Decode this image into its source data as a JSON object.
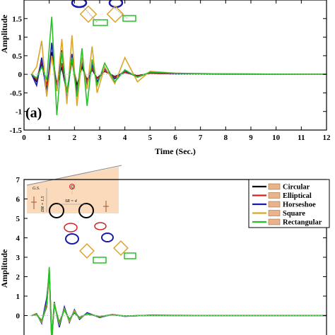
{
  "chart_data": [
    {
      "type": "line",
      "panel_label": "(a)",
      "xlabel": "Time (Sec.)",
      "ylabel": "Amplitude",
      "xlim": [
        0,
        12
      ],
      "ylim": [
        -1.5,
        2.0
      ],
      "x_ticks": [
        "0",
        "1",
        "2",
        "3",
        "4",
        "5",
        "6",
        "7",
        "8",
        "9",
        "10",
        "11",
        "12"
      ],
      "y_ticks": [
        "-1.5",
        "-1",
        "-0.5",
        "0",
        "0.5",
        "1",
        "1.5"
      ],
      "grid": false,
      "colors": {
        "Circular": "#000000",
        "Elliptical": "#d62020",
        "Horseshoe": "#1a1aa8",
        "Square": "#dba52a",
        "Rectangular": "#28c028"
      },
      "series": [
        {
          "name": "Circular",
          "x": [
            0.3,
            0.5,
            0.7,
            0.9,
            1.1,
            1.3,
            1.5,
            1.7,
            1.9,
            2.1,
            2.3,
            2.5,
            2.7,
            2.9,
            3.2,
            3.6,
            4.0,
            4.5,
            5.0,
            6.0,
            8.0,
            12.0
          ],
          "values": [
            0,
            -0.2,
            0.3,
            -0.4,
            0.6,
            -0.3,
            0.2,
            -0.5,
            0.4,
            -0.3,
            0.2,
            -0.15,
            0.12,
            -0.1,
            0.08,
            -0.06,
            0.05,
            -0.04,
            0.03,
            0.01,
            0.005,
            0
          ]
        },
        {
          "name": "Elliptical",
          "x": [
            0.3,
            0.5,
            0.7,
            0.9,
            1.1,
            1.3,
            1.5,
            1.7,
            1.9,
            2.1,
            2.3,
            2.5,
            2.7,
            2.9,
            3.2,
            3.6,
            4.0,
            4.5,
            5.0,
            6.0,
            8.0,
            12.0
          ],
          "values": [
            0,
            -0.15,
            0.35,
            -0.3,
            0.5,
            -0.25,
            0.3,
            -0.45,
            0.35,
            -0.4,
            0.3,
            -0.2,
            0.15,
            -0.12,
            0.1,
            -0.08,
            0.06,
            -0.05,
            0.03,
            0.015,
            0.005,
            0
          ]
        },
        {
          "name": "Horseshoe",
          "x": [
            0.3,
            0.5,
            0.7,
            0.9,
            1.1,
            1.3,
            1.5,
            1.7,
            1.9,
            2.1,
            2.3,
            2.5,
            2.7,
            2.9,
            3.2,
            3.6,
            4.0,
            4.5,
            5.0,
            6.0,
            8.0,
            12.0
          ],
          "values": [
            0,
            -0.3,
            0.45,
            -0.55,
            0.85,
            -0.45,
            0.65,
            -0.7,
            0.55,
            -0.5,
            0.35,
            -0.3,
            0.25,
            -0.2,
            0.15,
            -0.12,
            0.1,
            -0.08,
            0.05,
            0.02,
            0.01,
            0
          ]
        },
        {
          "name": "Square",
          "x": [
            0.3,
            0.5,
            0.7,
            0.9,
            1.1,
            1.3,
            1.5,
            1.7,
            1.9,
            2.1,
            2.3,
            2.5,
            2.7,
            2.9,
            3.2,
            3.6,
            4.0,
            4.5,
            5.0,
            6.0,
            8.0,
            12.0
          ],
          "values": [
            0,
            0.2,
            0.9,
            -0.6,
            0.5,
            -0.45,
            0.95,
            -0.8,
            1.05,
            -0.85,
            0.45,
            -0.4,
            0.75,
            -0.5,
            0.2,
            -0.25,
            0.45,
            -0.2,
            0.08,
            0.03,
            0.01,
            0
          ]
        },
        {
          "name": "Rectangular",
          "x": [
            0.3,
            0.5,
            0.7,
            0.9,
            1.1,
            1.3,
            1.5,
            1.7,
            1.9,
            2.1,
            2.3,
            2.5,
            2.7,
            2.9,
            3.2,
            3.6,
            4.0,
            4.5,
            5.0,
            6.0,
            8.0,
            12.0
          ],
          "values": [
            0,
            -0.1,
            0.2,
            -0.15,
            1.55,
            -1.1,
            0.6,
            -0.5,
            0.45,
            -0.6,
            0.7,
            -0.85,
            0.4,
            -0.3,
            0.3,
            -0.2,
            0.12,
            -0.08,
            0.06,
            0.03,
            0.01,
            0
          ]
        }
      ]
    },
    {
      "type": "line",
      "ylabel": "Amplitude",
      "ylim": [
        -1.0,
        7.0
      ],
      "y_ticks": [
        "0",
        "1",
        "2",
        "3",
        "4",
        "5",
        "6",
        "7"
      ],
      "legend": {
        "placement": "top-right",
        "entries": [
          "Circular",
          "Elliptical",
          "Horseshoe",
          "Square",
          "Rectangular"
        ]
      },
      "sketch_text": {
        "surface": "G.S.",
        "depth": "DR = 1.5",
        "spacing": "SR = 4",
        "marker": "Q"
      },
      "colors": {
        "Circular": "#000000",
        "Elliptical": "#d62020",
        "Horseshoe": "#1a1aa8",
        "Square": "#dba52a",
        "Rectangular": "#28c028"
      },
      "series": [
        {
          "name": "Circular",
          "x": [
            0.3,
            0.5,
            0.7,
            0.9,
            1.0,
            1.1,
            1.2,
            1.4,
            1.6,
            1.8,
            2.0,
            2.2,
            2.5,
            3.0,
            3.5,
            4.0,
            5.0,
            6.0,
            8.0,
            12.0
          ],
          "values": [
            0,
            0.05,
            -0.3,
            0.5,
            2.4,
            -1.2,
            0.6,
            -0.4,
            0.3,
            -0.2,
            0.15,
            -0.1,
            0.08,
            -0.05,
            0.04,
            -0.02,
            0.01,
            0.005,
            0,
            0
          ]
        },
        {
          "name": "Elliptical",
          "x": [
            0.3,
            0.5,
            0.7,
            0.9,
            1.0,
            1.1,
            1.2,
            1.4,
            1.6,
            1.8,
            2.0,
            2.2,
            2.5,
            3.0,
            3.5,
            4.0,
            5.0,
            6.0,
            8.0,
            12.0
          ],
          "values": [
            0,
            0.05,
            -0.25,
            0.45,
            2.3,
            -1.1,
            0.55,
            -0.35,
            0.3,
            -0.25,
            0.2,
            -0.1,
            0.08,
            -0.06,
            0.05,
            -0.03,
            0.01,
            0.005,
            0,
            0
          ]
        },
        {
          "name": "Horseshoe",
          "x": [
            0.3,
            0.5,
            0.7,
            0.9,
            1.0,
            1.1,
            1.2,
            1.4,
            1.6,
            1.8,
            2.0,
            2.2,
            2.5,
            3.0,
            3.5,
            4.0,
            5.0,
            6.0,
            8.0,
            12.0
          ],
          "values": [
            0,
            0.1,
            -0.4,
            0.9,
            2.2,
            -1.4,
            0.7,
            -0.6,
            0.45,
            -0.35,
            0.3,
            -0.2,
            0.15,
            -0.1,
            0.06,
            -0.04,
            0.02,
            0.01,
            0,
            0
          ]
        },
        {
          "name": "Square",
          "x": [
            0.3,
            0.5,
            0.7,
            0.9,
            1.0,
            1.1,
            1.2,
            1.4,
            1.6,
            1.8,
            2.0,
            2.2,
            2.5,
            3.0,
            3.5,
            4.0,
            5.0,
            6.0,
            8.0,
            12.0
          ],
          "values": [
            0,
            0.08,
            -0.35,
            0.6,
            2.35,
            -1.3,
            0.65,
            -0.45,
            0.35,
            -0.3,
            0.25,
            -0.15,
            0.1,
            -0.07,
            0.05,
            -0.03,
            0.01,
            0.005,
            0,
            0
          ]
        },
        {
          "name": "Rectangular",
          "x": [
            0.3,
            0.5,
            0.7,
            0.9,
            1.0,
            1.1,
            1.2,
            1.4,
            1.6,
            1.8,
            2.0,
            2.2,
            2.5,
            3.0,
            3.5,
            4.0,
            5.0,
            6.0,
            8.0,
            12.0
          ],
          "values": [
            0,
            0.06,
            -0.3,
            0.55,
            2.5,
            -1.25,
            0.6,
            -0.4,
            0.3,
            -0.22,
            0.18,
            -0.12,
            0.09,
            -0.06,
            0.04,
            -0.02,
            0.01,
            0.005,
            0,
            0
          ]
        }
      ]
    }
  ]
}
